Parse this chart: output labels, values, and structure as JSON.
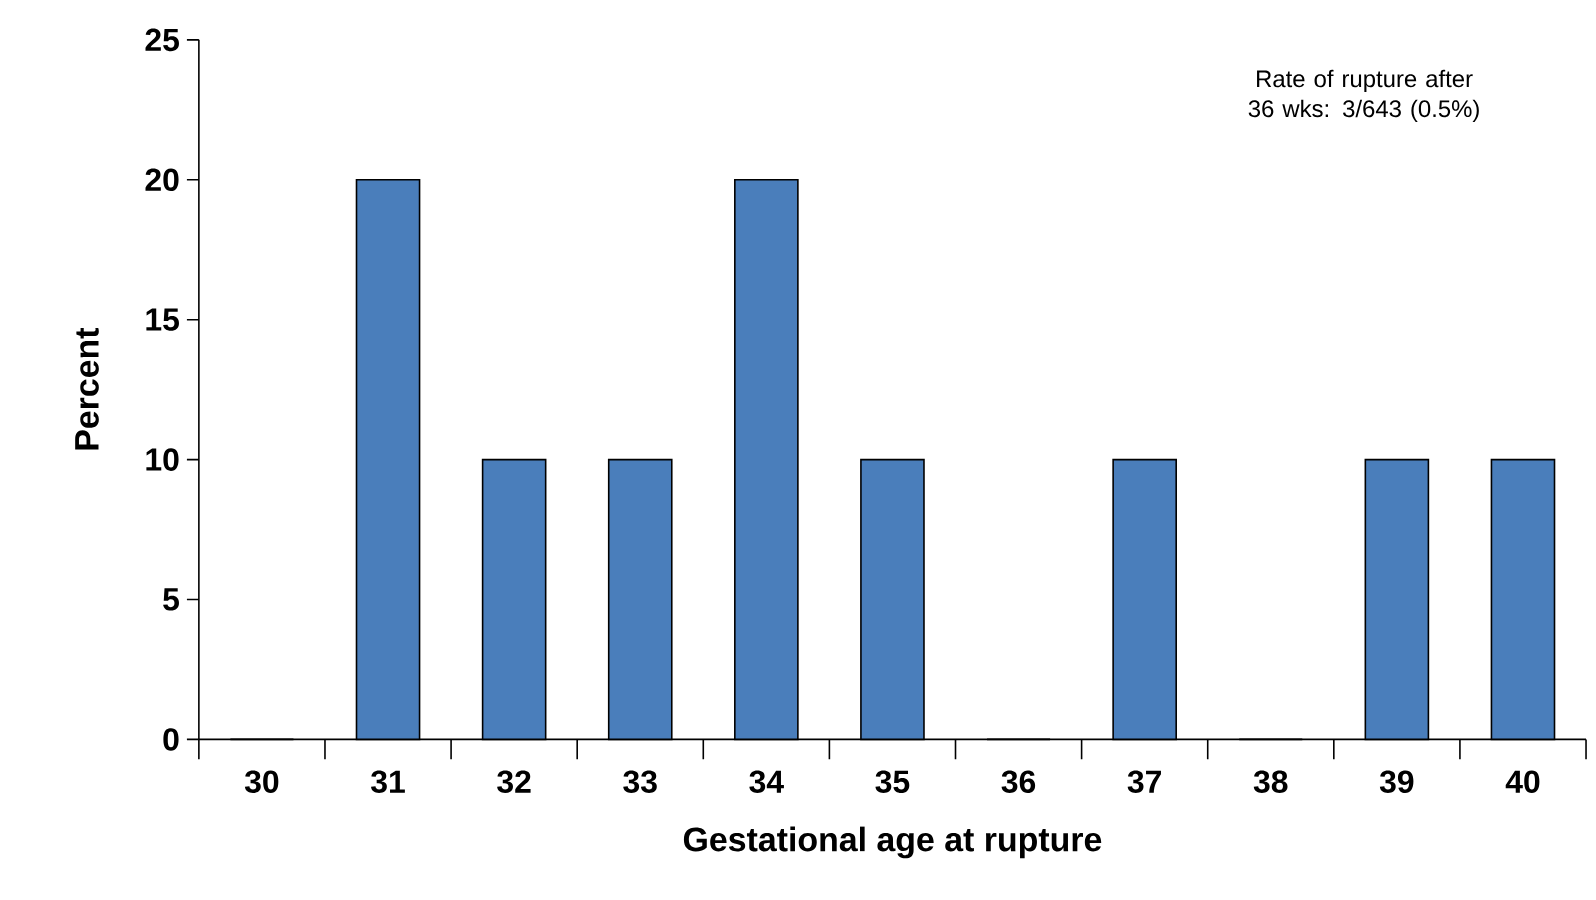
{
  "chart_data": {
    "type": "bar",
    "xlabel": "Gestational age at rupture",
    "ylabel": "Percent",
    "categories": [
      "30",
      "31",
      "32",
      "33",
      "34",
      "35",
      "36",
      "37",
      "38",
      "39",
      "40"
    ],
    "values": [
      0,
      20,
      10,
      10,
      20,
      10,
      0,
      10,
      0,
      10,
      10
    ],
    "color": "#4a7ebb",
    "ylim": [
      0,
      25
    ],
    "yticks": [
      0,
      5,
      10,
      15,
      20,
      25
    ],
    "annotations": [
      "Rate of rupture after 36 wks: 3/643 (0.5%)"
    ]
  }
}
